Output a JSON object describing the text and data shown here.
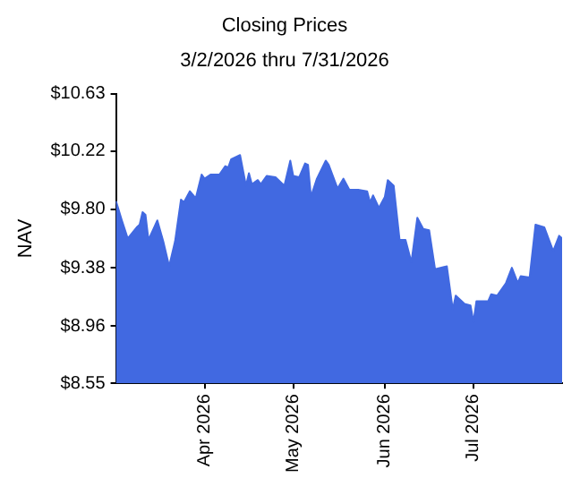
{
  "chart_data": {
    "type": "area",
    "title": "Closing Prices",
    "subtitle": "3/2/2026 thru 7/31/2026",
    "ylabel": "NAV",
    "x": [
      "2026-03-02",
      "2026-03-04",
      "2026-03-06",
      "2026-03-09",
      "2026-03-10",
      "2026-03-11",
      "2026-03-12",
      "2026-03-13",
      "2026-03-16",
      "2026-03-18",
      "2026-03-20",
      "2026-03-22",
      "2026-03-24",
      "2026-03-25",
      "2026-03-27",
      "2026-03-29",
      "2026-03-31",
      "2026-04-01",
      "2026-04-03",
      "2026-04-06",
      "2026-04-08",
      "2026-04-09",
      "2026-04-10",
      "2026-04-13",
      "2026-04-15",
      "2026-04-16",
      "2026-04-17",
      "2026-04-19",
      "2026-04-20",
      "2026-04-22",
      "2026-04-25",
      "2026-04-28",
      "2026-04-30",
      "2026-05-01",
      "2026-05-03",
      "2026-05-05",
      "2026-05-06",
      "2026-05-07",
      "2026-05-09",
      "2026-05-12",
      "2026-05-13",
      "2026-05-16",
      "2026-05-18",
      "2026-05-20",
      "2026-05-23",
      "2026-05-26",
      "2026-05-27",
      "2026-05-28",
      "2026-05-30",
      "2026-06-01",
      "2026-06-02",
      "2026-06-04",
      "2026-06-06",
      "2026-06-08",
      "2026-06-10",
      "2026-06-12",
      "2026-06-14",
      "2026-06-16",
      "2026-06-18",
      "2026-06-22",
      "2026-06-24",
      "2026-06-25",
      "2026-06-28",
      "2026-06-30",
      "2026-07-01",
      "2026-07-02",
      "2026-07-06",
      "2026-07-07",
      "2026-07-09",
      "2026-07-12",
      "2026-07-14",
      "2026-07-16",
      "2026-07-17",
      "2026-07-20",
      "2026-07-22",
      "2026-07-25",
      "2026-07-28",
      "2026-07-30",
      "2026-07-31"
    ],
    "series": [
      {
        "color": "#4169e1",
        "values": [
          9.86,
          9.72,
          9.59,
          9.67,
          9.69,
          9.78,
          9.76,
          9.58,
          9.72,
          9.57,
          9.39,
          9.57,
          9.87,
          9.85,
          9.93,
          9.88,
          10.05,
          10.02,
          10.05,
          10.05,
          10.11,
          10.1,
          10.16,
          10.19,
          9.97,
          10.06,
          9.98,
          10.01,
          9.98,
          10.04,
          10.03,
          9.97,
          10.15,
          10.04,
          10.03,
          10.13,
          10.12,
          9.89,
          10.02,
          10.15,
          10.12,
          9.95,
          10.02,
          9.94,
          9.94,
          9.93,
          9.85,
          9.9,
          9.81,
          9.89,
          10.01,
          9.97,
          9.58,
          9.58,
          9.42,
          9.74,
          9.66,
          9.65,
          9.37,
          9.39,
          9.08,
          9.18,
          9.12,
          9.11,
          8.99,
          9.14,
          9.14,
          9.19,
          9.18,
          9.27,
          9.38,
          9.27,
          9.32,
          9.31,
          9.69,
          9.67,
          9.5,
          9.61,
          9.59
        ]
      }
    ],
    "xlim": [
      "2026-03-02",
      "2026-07-31"
    ],
    "xticks": [
      {
        "value": "2026-04-01",
        "label": "Apr 2026"
      },
      {
        "value": "2026-05-01",
        "label": "May 2026"
      },
      {
        "value": "2026-06-01",
        "label": "Jun 2026"
      },
      {
        "value": "2026-07-01",
        "label": "Jul 2026"
      }
    ],
    "ylim": [
      8.55,
      10.63
    ],
    "yticks": [
      {
        "value": 8.55,
        "label": "$8.55"
      },
      {
        "value": 8.96,
        "label": "$8.96"
      },
      {
        "value": 9.38,
        "label": "$9.38"
      },
      {
        "value": 9.8,
        "label": "$9.80"
      },
      {
        "value": 10.22,
        "label": "$10.22"
      },
      {
        "value": 10.63,
        "label": "$10.63"
      }
    ],
    "grid": false,
    "legend": false
  }
}
